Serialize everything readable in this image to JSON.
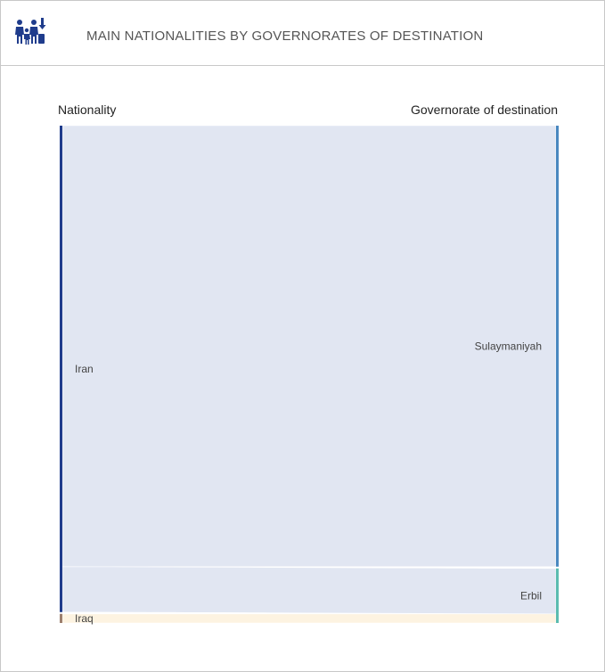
{
  "header": {
    "title": "MAIN NATIONALITIES BY GOVERNORATES OF DESTINATION",
    "icon": "family-migration-icon"
  },
  "chart_data": {
    "type": "sankey",
    "left_column_title": "Nationality",
    "right_column_title": "Governorate of destination",
    "nodes_left": [
      {
        "name": "Iran",
        "color": "#1f3c8c"
      },
      {
        "name": "Iraq",
        "color": "#9c7f6e"
      }
    ],
    "nodes_right": [
      {
        "name": "Sulaymaniyah",
        "color": "#4a88c0"
      },
      {
        "name": "Erbil",
        "color": "#5bbcb0"
      }
    ],
    "flows": [
      {
        "source": "Iran",
        "target": "Sulaymaniyah",
        "value": 485
      },
      {
        "source": "Iran",
        "target": "Erbil",
        "value": 50
      },
      {
        "source": "Iraq",
        "target": "Erbil",
        "value": 10
      }
    ],
    "colors": {
      "flow_iran": "#e1e6f2",
      "flow_iraq": "#fdf3e1"
    }
  }
}
